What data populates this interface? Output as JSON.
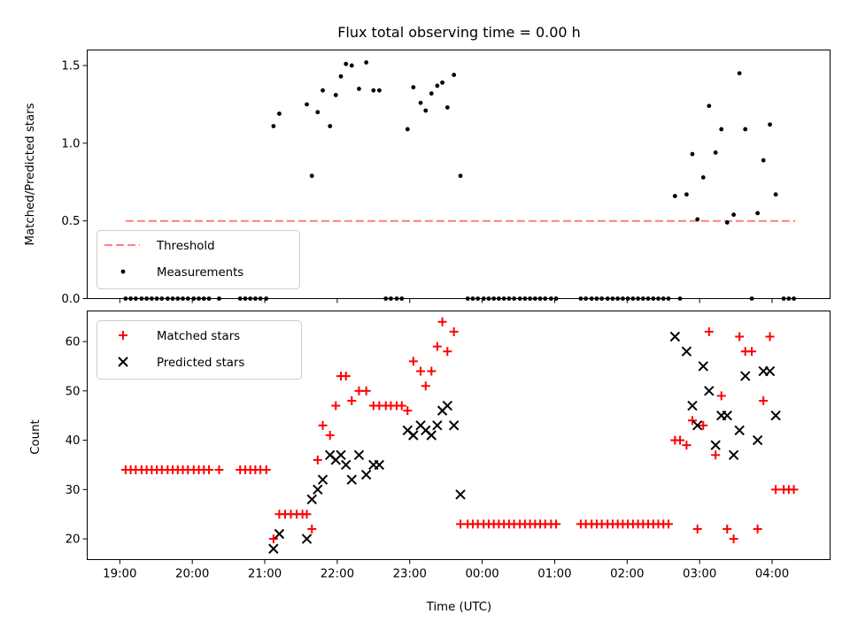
{
  "chart_data": [
    {
      "type": "scatter",
      "title": "Flux total observing time = 0.00 h",
      "xlabel": "",
      "ylabel": "Matched/Predicted stars",
      "xlim": [
        18.55,
        28.8
      ],
      "ylim": [
        0.0,
        1.6
      ],
      "yticks": [
        0.0,
        0.5,
        1.0,
        1.5
      ],
      "ytick_labels": [
        "0.0",
        "0.5",
        "1.0",
        "1.5"
      ],
      "legend_position": "lower-left",
      "series": [
        {
          "name": "Threshold",
          "style": "dashed-line",
          "color": "#ff7f7f",
          "points": [
            [
              19.08,
              0.5
            ],
            [
              28.32,
              0.5
            ]
          ]
        },
        {
          "name": "Measurements",
          "style": "dot",
          "color": "#000000",
          "points": [
            [
              19.08,
              0.0
            ],
            [
              19.15,
              0.0
            ],
            [
              19.22,
              0.0
            ],
            [
              19.3,
              0.0
            ],
            [
              19.37,
              0.0
            ],
            [
              19.44,
              0.0
            ],
            [
              19.51,
              0.0
            ],
            [
              19.58,
              0.0
            ],
            [
              19.66,
              0.0
            ],
            [
              19.73,
              0.0
            ],
            [
              19.8,
              0.0
            ],
            [
              19.87,
              0.0
            ],
            [
              19.94,
              0.0
            ],
            [
              20.02,
              0.0
            ],
            [
              20.09,
              0.0
            ],
            [
              20.16,
              0.0
            ],
            [
              20.23,
              0.0
            ],
            [
              20.37,
              0.0
            ],
            [
              20.66,
              0.0
            ],
            [
              20.73,
              0.0
            ],
            [
              20.8,
              0.0
            ],
            [
              20.87,
              0.0
            ],
            [
              20.94,
              0.0
            ],
            [
              21.02,
              0.0
            ],
            [
              21.12,
              1.11
            ],
            [
              21.2,
              1.19
            ],
            [
              21.58,
              1.25
            ],
            [
              21.65,
              0.79
            ],
            [
              21.73,
              1.2
            ],
            [
              21.8,
              1.34
            ],
            [
              21.9,
              1.11
            ],
            [
              21.98,
              1.31
            ],
            [
              22.05,
              1.43
            ],
            [
              22.12,
              1.51
            ],
            [
              22.2,
              1.5
            ],
            [
              22.3,
              1.35
            ],
            [
              22.4,
              1.52
            ],
            [
              22.5,
              1.34
            ],
            [
              22.58,
              1.34
            ],
            [
              22.67,
              0.0
            ],
            [
              22.74,
              0.0
            ],
            [
              22.82,
              0.0
            ],
            [
              22.89,
              0.0
            ],
            [
              22.97,
              1.09
            ],
            [
              23.05,
              1.36
            ],
            [
              23.15,
              1.26
            ],
            [
              23.22,
              1.21
            ],
            [
              23.3,
              1.32
            ],
            [
              23.38,
              1.37
            ],
            [
              23.45,
              1.39
            ],
            [
              23.52,
              1.23
            ],
            [
              23.61,
              1.44
            ],
            [
              23.7,
              0.79
            ],
            [
              23.8,
              0.0
            ],
            [
              23.87,
              0.0
            ],
            [
              23.94,
              0.0
            ],
            [
              24.02,
              0.0
            ],
            [
              24.09,
              0.0
            ],
            [
              24.16,
              0.0
            ],
            [
              24.23,
              0.0
            ],
            [
              24.3,
              0.0
            ],
            [
              24.37,
              0.0
            ],
            [
              24.44,
              0.0
            ],
            [
              24.52,
              0.0
            ],
            [
              24.59,
              0.0
            ],
            [
              24.66,
              0.0
            ],
            [
              24.73,
              0.0
            ],
            [
              24.8,
              0.0
            ],
            [
              24.87,
              0.0
            ],
            [
              24.95,
              0.0
            ],
            [
              25.02,
              0.0
            ],
            [
              25.36,
              0.0
            ],
            [
              25.43,
              0.0
            ],
            [
              25.51,
              0.0
            ],
            [
              25.58,
              0.0
            ],
            [
              25.65,
              0.0
            ],
            [
              25.73,
              0.0
            ],
            [
              25.8,
              0.0
            ],
            [
              25.87,
              0.0
            ],
            [
              25.94,
              0.0
            ],
            [
              26.01,
              0.0
            ],
            [
              26.08,
              0.0
            ],
            [
              26.15,
              0.0
            ],
            [
              26.22,
              0.0
            ],
            [
              26.29,
              0.0
            ],
            [
              26.36,
              0.0
            ],
            [
              26.43,
              0.0
            ],
            [
              26.5,
              0.0
            ],
            [
              26.57,
              0.0
            ],
            [
              26.66,
              0.66
            ],
            [
              26.73,
              0.0
            ],
            [
              26.82,
              0.67
            ],
            [
              26.9,
              0.93
            ],
            [
              26.97,
              0.51
            ],
            [
              27.05,
              0.78
            ],
            [
              27.13,
              1.24
            ],
            [
              27.22,
              0.94
            ],
            [
              27.3,
              1.09
            ],
            [
              27.38,
              0.49
            ],
            [
              27.47,
              0.54
            ],
            [
              27.55,
              1.45
            ],
            [
              27.63,
              1.09
            ],
            [
              27.72,
              0.0
            ],
            [
              27.8,
              0.55
            ],
            [
              27.88,
              0.89
            ],
            [
              27.97,
              1.12
            ],
            [
              28.05,
              0.67
            ],
            [
              28.16,
              0.0
            ],
            [
              28.23,
              0.0
            ],
            [
              28.3,
              0.0
            ]
          ]
        }
      ]
    },
    {
      "type": "scatter",
      "title": "",
      "xlabel": "Time (UTC)",
      "ylabel": "Count",
      "xlim": [
        18.55,
        28.8
      ],
      "ylim": [
        15.8,
        66.2
      ],
      "xticks": [
        19,
        20,
        21,
        22,
        23,
        24,
        25,
        26,
        27,
        28
      ],
      "xtick_labels": [
        "19:00",
        "20:00",
        "21:00",
        "22:00",
        "23:00",
        "00:00",
        "01:00",
        "02:00",
        "03:00",
        "04:00"
      ],
      "yticks": [
        20,
        30,
        40,
        50,
        60
      ],
      "ytick_labels": [
        "20",
        "30",
        "40",
        "50",
        "60"
      ],
      "legend_position": "upper-left",
      "series": [
        {
          "name": "Matched stars",
          "style": "plus",
          "color": "#ff0000",
          "points": [
            [
              19.08,
              34
            ],
            [
              19.15,
              34
            ],
            [
              19.22,
              34
            ],
            [
              19.3,
              34
            ],
            [
              19.37,
              34
            ],
            [
              19.44,
              34
            ],
            [
              19.51,
              34
            ],
            [
              19.58,
              34
            ],
            [
              19.66,
              34
            ],
            [
              19.73,
              34
            ],
            [
              19.8,
              34
            ],
            [
              19.87,
              34
            ],
            [
              19.94,
              34
            ],
            [
              20.02,
              34
            ],
            [
              20.09,
              34
            ],
            [
              20.16,
              34
            ],
            [
              20.23,
              34
            ],
            [
              20.37,
              34
            ],
            [
              20.66,
              34
            ],
            [
              20.73,
              34
            ],
            [
              20.8,
              34
            ],
            [
              20.87,
              34
            ],
            [
              20.94,
              34
            ],
            [
              21.02,
              34
            ],
            [
              21.12,
              20
            ],
            [
              21.2,
              25
            ],
            [
              21.28,
              25
            ],
            [
              21.36,
              25
            ],
            [
              21.44,
              25
            ],
            [
              21.52,
              25
            ],
            [
              21.58,
              25
            ],
            [
              21.65,
              22
            ],
            [
              21.73,
              36
            ],
            [
              21.8,
              43
            ],
            [
              21.9,
              41
            ],
            [
              21.98,
              47
            ],
            [
              22.05,
              53
            ],
            [
              22.12,
              53
            ],
            [
              22.2,
              48
            ],
            [
              22.3,
              50
            ],
            [
              22.4,
              50
            ],
            [
              22.5,
              47
            ],
            [
              22.58,
              47
            ],
            [
              22.67,
              47
            ],
            [
              22.74,
              47
            ],
            [
              22.82,
              47
            ],
            [
              22.89,
              47
            ],
            [
              22.97,
              46
            ],
            [
              23.05,
              56
            ],
            [
              23.15,
              54
            ],
            [
              23.22,
              51
            ],
            [
              23.3,
              54
            ],
            [
              23.38,
              59
            ],
            [
              23.45,
              64
            ],
            [
              23.52,
              58
            ],
            [
              23.61,
              62
            ],
            [
              23.7,
              23
            ],
            [
              23.8,
              23
            ],
            [
              23.87,
              23
            ],
            [
              23.94,
              23
            ],
            [
              24.02,
              23
            ],
            [
              24.09,
              23
            ],
            [
              24.16,
              23
            ],
            [
              24.23,
              23
            ],
            [
              24.3,
              23
            ],
            [
              24.37,
              23
            ],
            [
              24.44,
              23
            ],
            [
              24.52,
              23
            ],
            [
              24.59,
              23
            ],
            [
              24.66,
              23
            ],
            [
              24.73,
              23
            ],
            [
              24.8,
              23
            ],
            [
              24.87,
              23
            ],
            [
              24.95,
              23
            ],
            [
              25.02,
              23
            ],
            [
              25.36,
              23
            ],
            [
              25.43,
              23
            ],
            [
              25.51,
              23
            ],
            [
              25.58,
              23
            ],
            [
              25.65,
              23
            ],
            [
              25.73,
              23
            ],
            [
              25.8,
              23
            ],
            [
              25.87,
              23
            ],
            [
              25.94,
              23
            ],
            [
              26.01,
              23
            ],
            [
              26.08,
              23
            ],
            [
              26.15,
              23
            ],
            [
              26.22,
              23
            ],
            [
              26.29,
              23
            ],
            [
              26.36,
              23
            ],
            [
              26.43,
              23
            ],
            [
              26.5,
              23
            ],
            [
              26.57,
              23
            ],
            [
              26.66,
              40
            ],
            [
              26.73,
              40
            ],
            [
              26.82,
              39
            ],
            [
              26.9,
              44
            ],
            [
              26.97,
              22
            ],
            [
              27.05,
              43
            ],
            [
              27.13,
              62
            ],
            [
              27.22,
              37
            ],
            [
              27.3,
              49
            ],
            [
              27.38,
              22
            ],
            [
              27.47,
              20
            ],
            [
              27.55,
              61
            ],
            [
              27.63,
              58
            ],
            [
              27.72,
              58
            ],
            [
              27.8,
              22
            ],
            [
              27.88,
              48
            ],
            [
              27.97,
              61
            ],
            [
              28.05,
              30
            ],
            [
              28.16,
              30
            ],
            [
              28.23,
              30
            ],
            [
              28.3,
              30
            ]
          ]
        },
        {
          "name": "Predicted stars",
          "style": "x",
          "color": "#000000",
          "points": [
            [
              21.12,
              18
            ],
            [
              21.2,
              21
            ],
            [
              21.58,
              20
            ],
            [
              21.65,
              28
            ],
            [
              21.73,
              30
            ],
            [
              21.8,
              32
            ],
            [
              21.9,
              37
            ],
            [
              21.98,
              36
            ],
            [
              22.05,
              37
            ],
            [
              22.12,
              35
            ],
            [
              22.2,
              32
            ],
            [
              22.3,
              37
            ],
            [
              22.4,
              33
            ],
            [
              22.5,
              35
            ],
            [
              22.58,
              35
            ],
            [
              22.97,
              42
            ],
            [
              23.05,
              41
            ],
            [
              23.15,
              43
            ],
            [
              23.22,
              42
            ],
            [
              23.3,
              41
            ],
            [
              23.38,
              43
            ],
            [
              23.45,
              46
            ],
            [
              23.52,
              47
            ],
            [
              23.61,
              43
            ],
            [
              23.7,
              29
            ],
            [
              26.66,
              61
            ],
            [
              26.82,
              58
            ],
            [
              26.9,
              47
            ],
            [
              26.97,
              43
            ],
            [
              27.05,
              55
            ],
            [
              27.13,
              50
            ],
            [
              27.22,
              39
            ],
            [
              27.3,
              45
            ],
            [
              27.38,
              45
            ],
            [
              27.47,
              37
            ],
            [
              27.55,
              42
            ],
            [
              27.63,
              53
            ],
            [
              27.8,
              40
            ],
            [
              27.88,
              54
            ],
            [
              27.97,
              54
            ],
            [
              28.05,
              45
            ]
          ]
        }
      ]
    }
  ]
}
